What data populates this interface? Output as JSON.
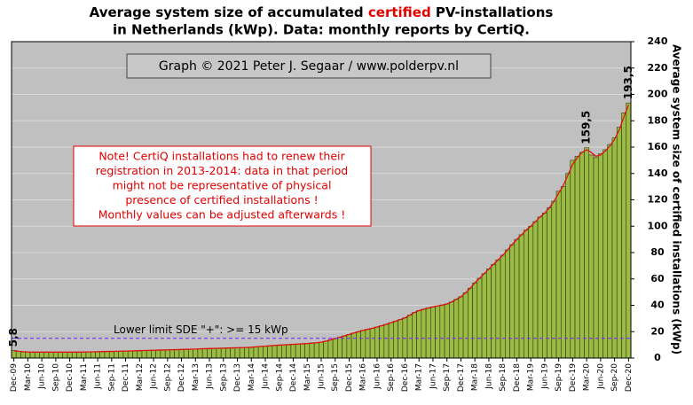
{
  "chart_data": {
    "type": "bar",
    "title": [
      "Average system size of accumulated",
      "certified",
      "PV-installations",
      "in Netherlands (kWp). Data: monthly reports by CertiQ."
    ],
    "credit": "Graph © 2021 Peter J. Segaar / www.polderpv.nl",
    "note": [
      "Note! CertiQ installations had to renew their",
      "registration in 2013-2014:  data in that period",
      "might  not be representative of physical",
      "presence of certified installations  !",
      "Monthly values can be adjusted afterwards !"
    ],
    "y_axis_label": "Average system size of certified installations  (kWp)",
    "categories": [
      "Dec-09",
      null,
      null,
      "Mar-10",
      null,
      null,
      "Jun-10",
      null,
      null,
      "Sep-10",
      null,
      null,
      "Dec-10",
      null,
      null,
      "Mar-11",
      null,
      null,
      "Jun-11",
      null,
      null,
      "Sep-11",
      null,
      null,
      "Dec-11",
      null,
      null,
      "Mar-12",
      null,
      null,
      "Jun-12",
      null,
      null,
      "Sep-12",
      null,
      null,
      "Dec-12",
      null,
      null,
      "Mar-13",
      null,
      null,
      "Jun-13",
      null,
      null,
      "Sep-13",
      null,
      null,
      "Dec-13",
      null,
      null,
      "Mar-14",
      null,
      null,
      "Jun-14",
      null,
      null,
      "Sep-14",
      null,
      null,
      "Dec-14",
      null,
      null,
      "Mar-15",
      null,
      null,
      "Jun-15",
      null,
      null,
      "Sep-15",
      null,
      null,
      "Dec-15",
      null,
      null,
      "Mar-16",
      null,
      null,
      "Jun-16",
      null,
      null,
      "Sep-16",
      null,
      null,
      "Dec-16",
      null,
      null,
      "Mar-17",
      null,
      null,
      "Jun-17",
      null,
      null,
      "Sep-17",
      null,
      null,
      "Dec-17",
      null,
      null,
      "Mar-18",
      null,
      null,
      "Jun-18",
      null,
      null,
      "Sep-18",
      null,
      null,
      "Dec-18",
      null,
      null,
      "Mar-19",
      null,
      null,
      "Jun-19",
      null,
      null,
      "Sep-19",
      null,
      null,
      "Dec-19",
      null,
      null,
      "Mar-20",
      null,
      null,
      "Jun-20",
      null,
      null,
      "Sep-20",
      null,
      null,
      "Dec-20"
    ],
    "values": [
      5.8,
      5.2,
      4.8,
      4.6,
      4.5,
      4.5,
      4.5,
      4.5,
      4.5,
      4.5,
      4.5,
      4.5,
      4.5,
      4.5,
      4.5,
      4.6,
      4.6,
      4.7,
      4.8,
      4.9,
      5.0,
      5.0,
      5.1,
      5.2,
      5.3,
      5.4,
      5.5,
      5.6,
      5.7,
      5.8,
      5.9,
      6.0,
      6.1,
      6.2,
      6.3,
      6.4,
      6.5,
      6.6,
      6.7,
      6.8,
      7.0,
      7.1,
      7.2,
      7.3,
      7.4,
      7.5,
      7.6,
      7.7,
      7.8,
      7.9,
      8.0,
      8.2,
      8.5,
      8.8,
      9.0,
      9.3,
      9.6,
      9.8,
      10.0,
      10.2,
      10.4,
      10.6,
      10.8,
      11.0,
      11.3,
      11.6,
      12.0,
      12.8,
      13.8,
      14.8,
      15.8,
      16.8,
      17.8,
      19.0,
      20.0,
      21.0,
      21.8,
      22.6,
      23.5,
      24.5,
      25.6,
      26.8,
      28.0,
      29.2,
      30.5,
      32.5,
      34.5,
      36.0,
      37.0,
      38.0,
      38.8,
      39.5,
      40.2,
      41.0,
      42.5,
      44.5,
      46.5,
      49.5,
      53.0,
      57.0,
      60.5,
      64.0,
      67.5,
      71.0,
      74.5,
      78.0,
      82.0,
      86.0,
      90.0,
      93.5,
      97.0,
      100.0,
      103.5,
      107.0,
      110.0,
      114.0,
      119.0,
      126.5,
      130.0,
      140.0,
      150.0,
      153.0,
      156.0,
      159.5,
      154.0,
      152.0,
      155.0,
      158.0,
      162.0,
      167.0,
      175.0,
      186.0,
      193.5
    ],
    "value_labels": [
      "5,8",
      null,
      null,
      null,
      null,
      null,
      null,
      null,
      null,
      null,
      null,
      null,
      null,
      null,
      null,
      null,
      null,
      null,
      null,
      null,
      null,
      null,
      null,
      null,
      null,
      null,
      null,
      null,
      null,
      null,
      null,
      null,
      null,
      null,
      null,
      null,
      null,
      null,
      null,
      null,
      null,
      null,
      null,
      null,
      null,
      null,
      null,
      null,
      null,
      null,
      null,
      null,
      null,
      null,
      null,
      null,
      null,
      null,
      null,
      null,
      null,
      null,
      null,
      null,
      null,
      null,
      null,
      null,
      null,
      null,
      null,
      null,
      null,
      null,
      null,
      null,
      null,
      null,
      null,
      null,
      null,
      null,
      null,
      null,
      null,
      null,
      null,
      null,
      null,
      null,
      null,
      null,
      null,
      null,
      null,
      null,
      null,
      null,
      null,
      null,
      null,
      null,
      null,
      null,
      null,
      null,
      null,
      null,
      null,
      null,
      null,
      null,
      null,
      null,
      null,
      null,
      null,
      null,
      null,
      null,
      null,
      null,
      null,
      "159,5",
      null,
      null,
      null,
      null,
      null,
      null,
      null,
      null,
      "193,5"
    ],
    "color": "#9bbb45",
    "trend": {
      "color": "#e01010",
      "values": [
        5.6,
        5.1,
        4.8,
        4.6,
        4.5,
        4.5,
        4.5,
        4.5,
        4.5,
        4.5,
        4.5,
        4.5,
        4.5,
        4.5,
        4.5,
        4.6,
        4.6,
        4.7,
        4.8,
        4.9,
        5.0,
        5.0,
        5.1,
        5.2,
        5.3,
        5.4,
        5.5,
        5.6,
        5.7,
        5.8,
        5.9,
        6.0,
        6.1,
        6.2,
        6.3,
        6.4,
        6.5,
        6.6,
        6.7,
        6.8,
        7.0,
        7.1,
        7.2,
        7.3,
        7.4,
        7.5,
        7.6,
        7.7,
        7.8,
        7.9,
        8.0,
        8.2,
        8.5,
        8.8,
        9.0,
        9.3,
        9.6,
        9.8,
        10.0,
        10.2,
        10.4,
        10.6,
        10.8,
        11.0,
        11.3,
        11.6,
        12.0,
        12.8,
        13.8,
        14.8,
        15.8,
        16.8,
        17.8,
        19.0,
        20.0,
        21.0,
        21.8,
        22.6,
        23.5,
        24.5,
        25.6,
        26.8,
        28.0,
        29.2,
        30.5,
        32.5,
        34.5,
        36.0,
        37.0,
        38.0,
        38.8,
        39.5,
        40.2,
        41.0,
        42.5,
        44.5,
        46.5,
        49.5,
        53.0,
        57.0,
        60.5,
        64.0,
        67.5,
        71.0,
        74.5,
        78.0,
        82.0,
        86.0,
        90.0,
        93.5,
        97.0,
        100.0,
        103.5,
        107.0,
        110.0,
        114.0,
        119.0,
        125.0,
        131.0,
        139.0,
        147.0,
        152.0,
        156.0,
        158.0,
        156.0,
        153.0,
        154.0,
        157.0,
        161.0,
        166.0,
        173.0,
        183.0,
        192.0
      ]
    },
    "reference_line": {
      "value": 15,
      "label": "Lower limit  SDE \"+\":    >= 15 kWp",
      "color": "#7b2cff"
    },
    "ylim": [
      0,
      240
    ],
    "yticks": [
      0,
      20,
      40,
      60,
      80,
      100,
      120,
      140,
      160,
      180,
      200,
      220,
      240
    ],
    "grid": true
  }
}
